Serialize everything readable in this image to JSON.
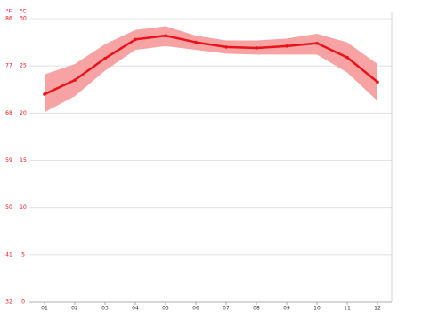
{
  "chart_data": {
    "type": "line",
    "y_label": "°C",
    "y2_label": "°F",
    "categories": [
      "01",
      "02",
      "03",
      "04",
      "05",
      "06",
      "07",
      "08",
      "09",
      "10",
      "11",
      "12"
    ],
    "values": [
      22.0,
      23.5,
      25.8,
      27.8,
      28.2,
      27.5,
      27.0,
      26.9,
      27.1,
      27.4,
      25.9,
      23.3
    ],
    "band_high": [
      24.1,
      25.2,
      27.3,
      28.8,
      29.2,
      28.2,
      27.7,
      27.7,
      27.9,
      28.4,
      27.5,
      25.2
    ],
    "band_low": [
      20.1,
      21.8,
      24.5,
      26.7,
      27.1,
      26.7,
      26.3,
      26.2,
      26.2,
      26.2,
      24.3,
      21.3
    ],
    "color": "#e8141b",
    "band_color": "#f7a3a3",
    "ylim": [
      0,
      30
    ],
    "yticks": [
      0,
      5,
      10,
      15,
      20,
      25,
      30
    ],
    "y2lim": [
      32,
      86
    ],
    "y2ticks": [
      32,
      41,
      50,
      59,
      68,
      77,
      86
    ],
    "grid": true
  }
}
